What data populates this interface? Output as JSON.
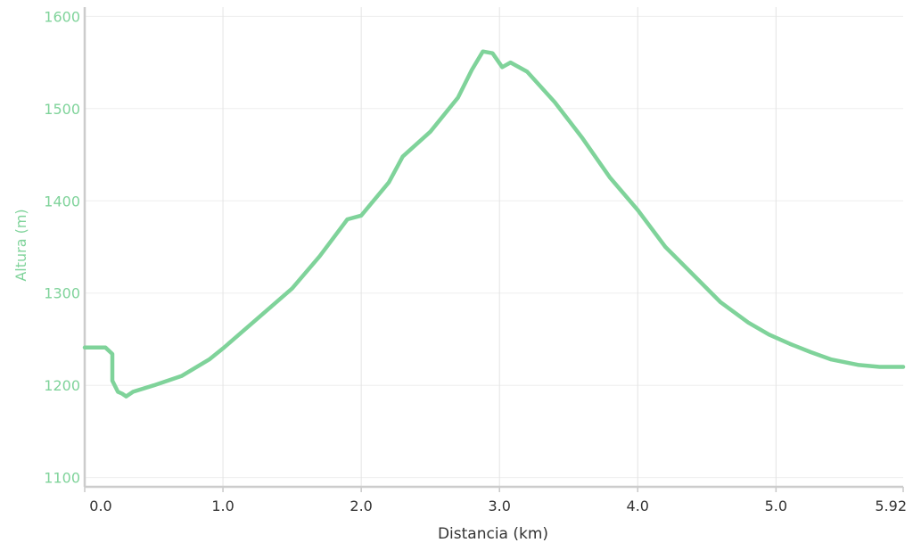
{
  "chart_data": {
    "type": "area",
    "xlabel": "Distancia (km)",
    "ylabel": "Altura (m)",
    "xlim": [
      0,
      5.92
    ],
    "ylim": [
      1090,
      1610
    ],
    "xticks": [
      0.0,
      1.0,
      2.0,
      3.0,
      4.0,
      5.0,
      5.92
    ],
    "xtick_labels": [
      "0.0",
      "1.0",
      "2.0",
      "3.0",
      "4.0",
      "5.0",
      "5.92"
    ],
    "yticks": [
      1100,
      1200,
      1300,
      1400,
      1500,
      1600
    ],
    "ytick_labels": [
      "1100",
      "1200",
      "1300",
      "1400",
      "1500",
      "1600"
    ],
    "grid": true,
    "line_color": "#7fd39a",
    "series": [
      {
        "x": [
          0.0,
          0.15,
          0.2,
          0.2,
          0.24,
          0.27,
          0.3,
          0.35,
          0.5,
          0.7,
          0.9,
          1.0,
          1.2,
          1.5,
          1.7,
          1.9,
          2.0,
          2.2,
          2.3,
          2.5,
          2.7,
          2.8,
          2.88,
          2.95,
          3.02,
          3.08,
          3.2,
          3.4,
          3.6,
          3.8,
          4.0,
          4.2,
          4.4,
          4.6,
          4.8,
          4.95,
          5.1,
          5.25,
          5.4,
          5.6,
          5.75,
          5.92
        ],
        "y": [
          1241,
          1241,
          1234,
          1205,
          1193,
          1191,
          1188,
          1193,
          1200,
          1210,
          1228,
          1240,
          1266,
          1305,
          1340,
          1380,
          1384,
          1420,
          1448,
          1475,
          1512,
          1542,
          1562,
          1560,
          1545,
          1550,
          1540,
          1507,
          1468,
          1425,
          1390,
          1350,
          1320,
          1290,
          1268,
          1255,
          1245,
          1236,
          1228,
          1222,
          1220,
          1220
        ]
      }
    ]
  }
}
